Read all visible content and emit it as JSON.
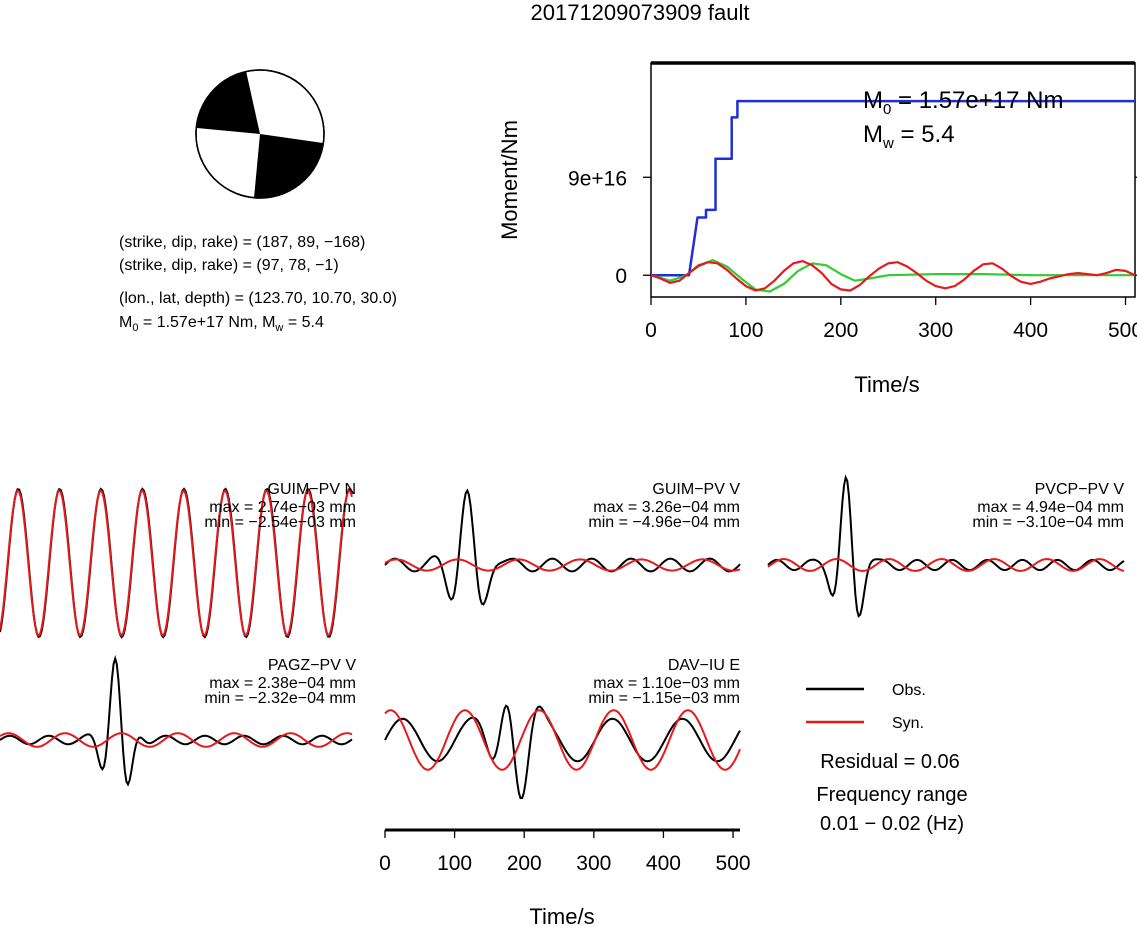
{
  "title": "20171209073909 fault",
  "info": {
    "np1": "(strike, dip, rake) = (187, 89, −168)",
    "np2": "(strike, dip, rake) = (97, 78, −1)",
    "loc": "(lon., lat, depth) = (123.70, 10.70, 30.0)",
    "m0_prefix": "M",
    "m0_sub": "0",
    "m0_rest": " = 1.57e+17 Nm, M",
    "mw_sub": "w",
    "mw_rest": " = 5.4"
  },
  "legend": {
    "obs_label": "Obs.",
    "syn_label": "Syn.",
    "obs_color": "#000000",
    "syn_color": "#e41a1c",
    "residual": "Residual = 0.06",
    "freq_title": "Frequency range",
    "freq_value": "0.01 − 0.02 (Hz)"
  },
  "chart_data": [
    {
      "type": "line",
      "name": "moment-rate",
      "xlabel": "Time/s",
      "ylabel": "Moment/Nm",
      "xlim": [
        0,
        510
      ],
      "ylim": [
        -2e+16,
        1.95e+17
      ],
      "x_ticks": [
        0,
        100,
        200,
        300,
        400,
        500
      ],
      "y_ticks": [
        0,
        9e+16
      ],
      "y_tick_labels": [
        "0",
        "9e+16"
      ],
      "annot_m0_prefix": "M",
      "annot_m0_sub": "0",
      "annot_m0_rest": " = 1.57e+17 Nm",
      "annot_mw_prefix": "M",
      "annot_mw_sub": "w",
      "annot_mw_rest": " = 5.4",
      "series": [
        {
          "color": "#1f2fd6",
          "x": [
            0,
            40,
            49,
            49,
            58,
            58,
            68,
            68,
            76,
            76,
            85,
            85,
            91,
            91,
            510
          ],
          "y": [
            0,
            0,
            5.3e+16,
            5.3e+16,
            5.3e+16,
            6e+16,
            6e+16,
            1.07e+17,
            1.07e+17,
            1.07e+17,
            1.07e+17,
            1.45e+17,
            1.45e+17,
            1.6e+17,
            1.6e+17
          ]
        },
        {
          "color": "#32cd32",
          "x": [
            0,
            20,
            35,
            50,
            65,
            80,
            95,
            110,
            125,
            140,
            155,
            170,
            185,
            200,
            215,
            230,
            250,
            300,
            350,
            400,
            450,
            510
          ],
          "y": [
            0,
            -5000000000000000.0,
            -1000000000000000.0,
            8000000000000000.0,
            1.4e+16,
            8000000000000000.0,
            -3000000000000000.0,
            -1.3e+16,
            -1.5e+16,
            -8000000000000000.0,
            4000000000000000.0,
            1.1e+16,
            9000000000000000.0,
            1000000000000000.0,
            -5000000000000000.0,
            -3000000000000000.0,
            0,
            1000000000000000.0,
            1000000000000000.0,
            0,
            0,
            0
          ]
        },
        {
          "color": "#e41a1c",
          "x": [
            0,
            10,
            20,
            30,
            40,
            50,
            60,
            70,
            80,
            90,
            100,
            110,
            120,
            130,
            140,
            150,
            160,
            170,
            180,
            190,
            200,
            210,
            220,
            230,
            240,
            250,
            260,
            270,
            280,
            290,
            300,
            310,
            320,
            330,
            340,
            350,
            360,
            370,
            380,
            390,
            400,
            410,
            420,
            430,
            440,
            450,
            460,
            470,
            480,
            490,
            500,
            510
          ],
          "y": [
            0,
            -3000000000000000.0,
            -7000000000000000.0,
            -5000000000000000.0,
            2000000000000000.0,
            9000000000000000.0,
            1.2e+16,
            1.1e+16,
            5000000000000000.0,
            -3000000000000000.0,
            -1e+16,
            -1.4e+16,
            -1.2e+16,
            -5000000000000000.0,
            4000000000000000.0,
            1.1e+16,
            1.3e+16,
            9000000000000000.0,
            2000000000000000.0,
            -8000000000000000.0,
            -1.3e+16,
            -1.4e+16,
            -9000000000000000.0,
            -1000000000000000.0,
            6000000000000000.0,
            1.1e+16,
            1.2e+16,
            8000000000000000.0,
            2000000000000000.0,
            -5000000000000000.0,
            -1e+16,
            -1.2e+16,
            -1e+16,
            -4000000000000000.0,
            4000000000000000.0,
            1e+16,
            1.1e+16,
            6000000000000000.0,
            -1000000000000000.0,
            -6000000000000000.0,
            -8000000000000000.0,
            -6000000000000000.0,
            -3000000000000000.0,
            -1000000000000000.0,
            1000000000000000.0,
            2000000000000000.0,
            1000000000000000.0,
            0,
            2000000000000000.0,
            5000000000000000.0,
            4000000000000000.0,
            0
          ]
        }
      ]
    },
    {
      "type": "line",
      "name": "waveform-panels",
      "xlabel": "Time/s",
      "xlim": [
        0,
        510
      ],
      "x_ticks": [
        0,
        100,
        200,
        300,
        400,
        500
      ],
      "stations": [
        {
          "name": "GUIM−PV N",
          "max": "max = 2.74e−03 mm",
          "min": "min = −2.54e−03 mm"
        },
        {
          "name": "GUIM−PV V",
          "max": "max = 3.26e−04 mm",
          "min": "min = −4.96e−04 mm"
        },
        {
          "name": "PVCP−PV V",
          "max": "max = 4.94e−04 mm",
          "min": "min = −3.10e−04 mm"
        },
        {
          "name": "PAGZ−PV V",
          "max": "max = 2.38e−04 mm",
          "min": "min = −2.32e−04 mm"
        },
        {
          "name": "DAV−IU E",
          "max": "max = 1.10e−03 mm",
          "min": "min = −1.15e−03 mm"
        }
      ]
    }
  ]
}
